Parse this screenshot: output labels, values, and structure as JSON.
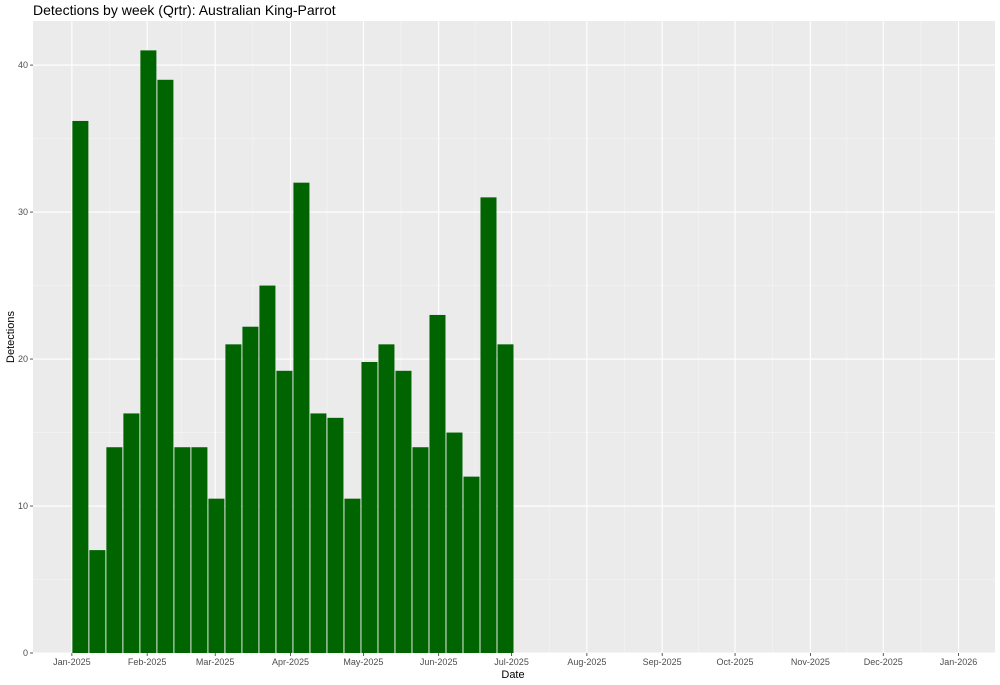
{
  "chart_data": {
    "type": "bar",
    "title": "Detections by week (Qrtr): Australian King-Parrot",
    "xlabel": "Date",
    "ylabel": "Detections",
    "x_tick_labels": [
      "Jan-2025",
      "Feb-2025",
      "Mar-2025",
      "Apr-2025",
      "May-2025",
      "Jun-2025",
      "Jul-2025",
      "Aug-2025",
      "Sep-2025",
      "Oct-2025",
      "Nov-2025",
      "Dec-2025",
      "Jan-2026"
    ],
    "x_ticks": [
      "2025-01-01",
      "2025-02-01",
      "2025-03-01",
      "2025-04-01",
      "2025-05-01",
      "2025-06-01",
      "2025-07-01",
      "2025-08-01",
      "2025-09-01",
      "2025-10-01",
      "2025-11-01",
      "2025-12-01",
      "2026-01-01"
    ],
    "xlim": [
      "2024-12-16",
      "2026-01-16"
    ],
    "ylim": [
      0,
      43
    ],
    "y_ticks": [
      0,
      10,
      20,
      30,
      40
    ],
    "grid": true,
    "bar_color": "#006400",
    "panel_color": "#ebebeb",
    "categories": [
      "2025-01-01",
      "2025-01-08",
      "2025-01-15",
      "2025-01-22",
      "2025-01-29",
      "2025-02-05",
      "2025-02-12",
      "2025-02-19",
      "2025-02-26",
      "2025-03-05",
      "2025-03-12",
      "2025-03-19",
      "2025-03-26",
      "2025-04-02",
      "2025-04-09",
      "2025-04-16",
      "2025-04-23",
      "2025-04-30",
      "2025-05-07",
      "2025-05-14",
      "2025-05-21",
      "2025-05-28",
      "2025-06-04",
      "2025-06-11",
      "2025-06-18",
      "2025-06-25"
    ],
    "values": [
      36.2,
      7,
      14,
      16.3,
      41,
      39,
      14,
      14,
      10.5,
      21,
      22.2,
      25,
      19.2,
      32,
      16.3,
      16,
      10.5,
      19.8,
      21,
      19.2,
      14,
      23,
      15,
      12,
      31,
      21
    ]
  }
}
